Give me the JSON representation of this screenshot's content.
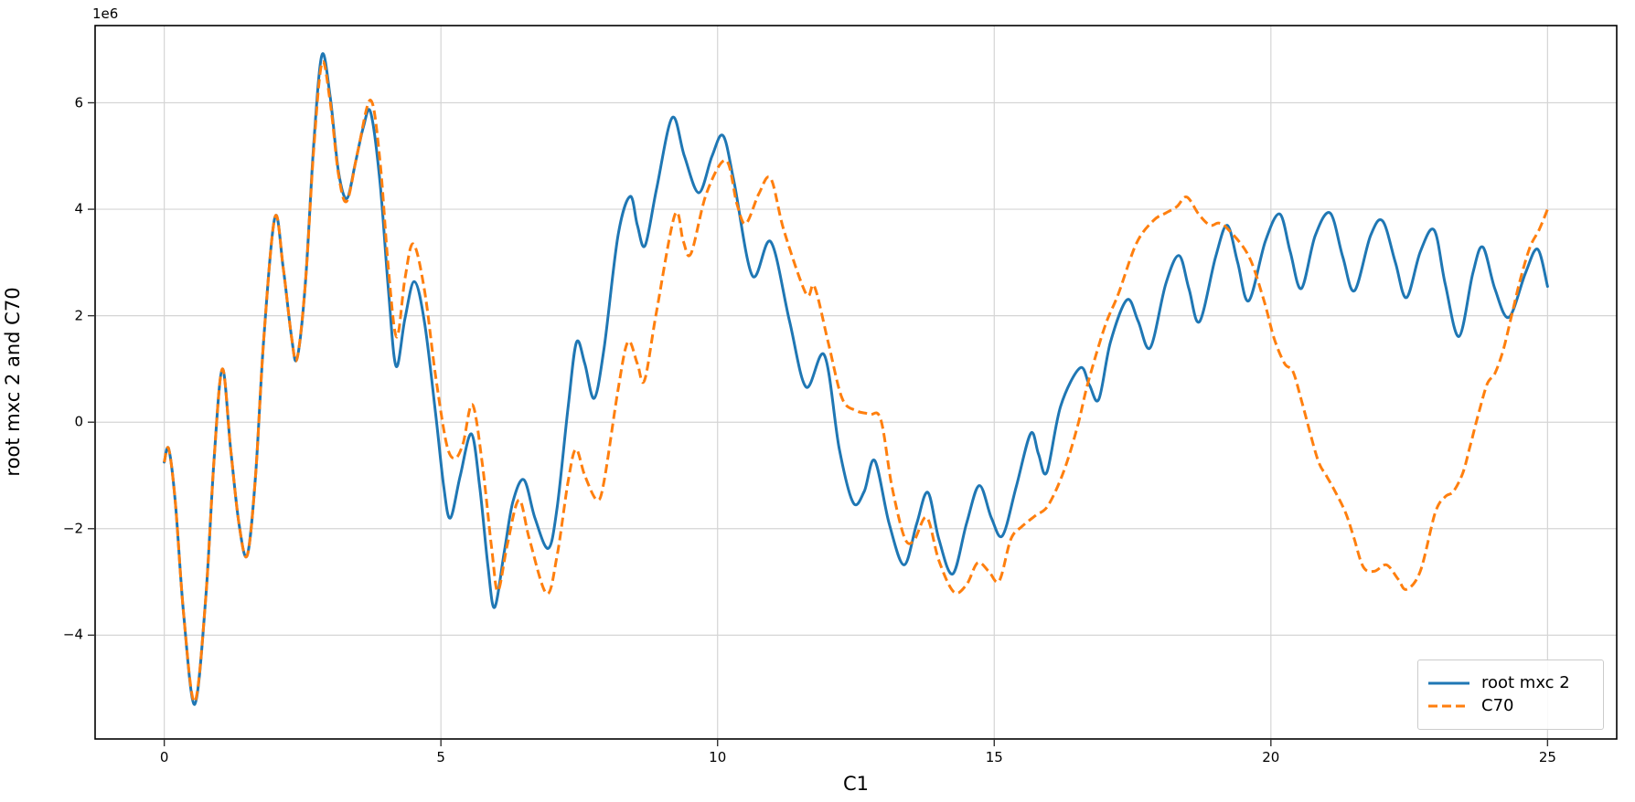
{
  "figure": {
    "background": "#ffffff",
    "spine_color": "#000000",
    "grid_color": "#d5d5d5",
    "tick_color": "#333333"
  },
  "chart_data": {
    "type": "line",
    "title": "",
    "xlabel": "C1",
    "ylabel": "root mxc 2 and C70",
    "offset_text": "1e6",
    "y_unit_multiplier": 1000000,
    "grid": true,
    "xlim": [
      -1.25,
      26.25
    ],
    "ylim": [
      -5.95,
      7.45
    ],
    "x_ticks": [
      0,
      5,
      10,
      15,
      20,
      25
    ],
    "x_tick_labels": [
      "0",
      "5",
      "10",
      "15",
      "20",
      "25"
    ],
    "y_ticks": [
      6,
      4,
      2,
      0,
      -2,
      -4
    ],
    "y_tick_labels": [
      "6",
      "4",
      "2",
      "0",
      "−2",
      "−4"
    ],
    "legend": {
      "location": "lower right",
      "entries": [
        {
          "label": "root mxc 2",
          "style": "solid"
        },
        {
          "label": "C70",
          "style": "dashed"
        }
      ]
    },
    "series": [
      {
        "name": "root mxc 2",
        "color": "#1f77b4",
        "style": "solid",
        "linewidth": 3,
        "points": [
          [
            0,
            -0.75
          ],
          [
            0.08,
            -0.5
          ],
          [
            0.2,
            -1.5
          ],
          [
            0.35,
            -3.6
          ],
          [
            0.55,
            -5.3
          ],
          [
            0.75,
            -3.3
          ],
          [
            0.9,
            -0.7
          ],
          [
            1.05,
            1.0
          ],
          [
            1.2,
            -0.5
          ],
          [
            1.35,
            -1.9
          ],
          [
            1.5,
            -2.5
          ],
          [
            1.65,
            -1.0
          ],
          [
            1.8,
            1.6
          ],
          [
            2.0,
            3.85
          ],
          [
            2.15,
            2.9
          ],
          [
            2.3,
            1.6
          ],
          [
            2.4,
            1.2
          ],
          [
            2.55,
            2.6
          ],
          [
            2.7,
            5.2
          ],
          [
            2.85,
            6.9
          ],
          [
            3.0,
            6.1
          ],
          [
            3.15,
            4.7
          ],
          [
            3.3,
            4.2
          ],
          [
            3.45,
            4.85
          ],
          [
            3.6,
            5.55
          ],
          [
            3.73,
            5.82
          ],
          [
            3.9,
            4.5
          ],
          [
            4.05,
            2.5
          ],
          [
            4.19,
            1.05
          ],
          [
            4.35,
            1.95
          ],
          [
            4.52,
            2.64
          ],
          [
            4.7,
            1.9
          ],
          [
            4.9,
            0.2
          ],
          [
            5.05,
            -1.2
          ],
          [
            5.17,
            -1.8
          ],
          [
            5.35,
            -1.0
          ],
          [
            5.55,
            -0.22
          ],
          [
            5.7,
            -1.2
          ],
          [
            5.85,
            -2.7
          ],
          [
            5.97,
            -3.48
          ],
          [
            6.15,
            -2.4
          ],
          [
            6.3,
            -1.5
          ],
          [
            6.5,
            -1.08
          ],
          [
            6.7,
            -1.8
          ],
          [
            6.94,
            -2.37
          ],
          [
            7.1,
            -1.6
          ],
          [
            7.3,
            0.3
          ],
          [
            7.45,
            1.5
          ],
          [
            7.6,
            1.1
          ],
          [
            7.77,
            0.45
          ],
          [
            7.95,
            1.4
          ],
          [
            8.2,
            3.5
          ],
          [
            8.42,
            4.24
          ],
          [
            8.55,
            3.7
          ],
          [
            8.69,
            3.32
          ],
          [
            8.9,
            4.4
          ],
          [
            9.18,
            5.72
          ],
          [
            9.4,
            5.0
          ],
          [
            9.66,
            4.31
          ],
          [
            9.9,
            5.0
          ],
          [
            10.1,
            5.38
          ],
          [
            10.3,
            4.5
          ],
          [
            10.63,
            2.75
          ],
          [
            10.96,
            3.39
          ],
          [
            11.3,
            1.9
          ],
          [
            11.6,
            0.66
          ],
          [
            11.93,
            1.26
          ],
          [
            12.2,
            -0.5
          ],
          [
            12.45,
            -1.51
          ],
          [
            12.65,
            -1.3
          ],
          [
            12.84,
            -0.72
          ],
          [
            13.1,
            -1.9
          ],
          [
            13.37,
            -2.68
          ],
          [
            13.6,
            -1.9
          ],
          [
            13.8,
            -1.32
          ],
          [
            14.0,
            -2.2
          ],
          [
            14.25,
            -2.85
          ],
          [
            14.5,
            -1.9
          ],
          [
            14.73,
            -1.19
          ],
          [
            14.95,
            -1.8
          ],
          [
            15.15,
            -2.13
          ],
          [
            15.4,
            -1.2
          ],
          [
            15.66,
            -0.21
          ],
          [
            15.8,
            -0.6
          ],
          [
            15.95,
            -0.94
          ],
          [
            16.2,
            0.3
          ],
          [
            16.55,
            1.02
          ],
          [
            16.72,
            0.7
          ],
          [
            16.89,
            0.43
          ],
          [
            17.1,
            1.5
          ],
          [
            17.4,
            2.3
          ],
          [
            17.6,
            1.9
          ],
          [
            17.82,
            1.4
          ],
          [
            18.1,
            2.6
          ],
          [
            18.34,
            3.13
          ],
          [
            18.52,
            2.5
          ],
          [
            18.71,
            1.89
          ],
          [
            19.0,
            3.1
          ],
          [
            19.21,
            3.7
          ],
          [
            19.4,
            3.0
          ],
          [
            19.6,
            2.28
          ],
          [
            19.9,
            3.4
          ],
          [
            20.16,
            3.91
          ],
          [
            20.35,
            3.2
          ],
          [
            20.55,
            2.51
          ],
          [
            20.8,
            3.5
          ],
          [
            21.07,
            3.93
          ],
          [
            21.3,
            3.1
          ],
          [
            21.51,
            2.47
          ],
          [
            21.8,
            3.5
          ],
          [
            22.02,
            3.78
          ],
          [
            22.25,
            3.0
          ],
          [
            22.45,
            2.34
          ],
          [
            22.7,
            3.2
          ],
          [
            22.95,
            3.61
          ],
          [
            23.15,
            2.6
          ],
          [
            23.4,
            1.61
          ],
          [
            23.65,
            2.8
          ],
          [
            23.83,
            3.29
          ],
          [
            24.05,
            2.5
          ],
          [
            24.3,
            1.97
          ],
          [
            24.6,
            2.8
          ],
          [
            24.82,
            3.25
          ],
          [
            25.0,
            2.55
          ]
        ]
      },
      {
        "name": "C70",
        "color": "#ff7f0e",
        "style": "dashed",
        "linewidth": 3,
        "points": [
          [
            0,
            -0.75
          ],
          [
            0.08,
            -0.5
          ],
          [
            0.2,
            -1.5
          ],
          [
            0.35,
            -3.6
          ],
          [
            0.55,
            -5.25
          ],
          [
            0.75,
            -3.3
          ],
          [
            0.9,
            -0.7
          ],
          [
            1.05,
            1.0
          ],
          [
            1.2,
            -0.5
          ],
          [
            1.35,
            -1.9
          ],
          [
            1.5,
            -2.5
          ],
          [
            1.65,
            -1.0
          ],
          [
            1.8,
            1.6
          ],
          [
            2.0,
            3.85
          ],
          [
            2.15,
            2.9
          ],
          [
            2.3,
            1.6
          ],
          [
            2.4,
            1.2
          ],
          [
            2.55,
            2.6
          ],
          [
            2.7,
            5.1
          ],
          [
            2.85,
            6.75
          ],
          [
            3.0,
            6.0
          ],
          [
            3.15,
            4.65
          ],
          [
            3.3,
            4.15
          ],
          [
            3.5,
            5.1
          ],
          [
            3.73,
            6.05
          ],
          [
            3.9,
            4.9
          ],
          [
            4.05,
            2.9
          ],
          [
            4.2,
            1.6
          ],
          [
            4.35,
            2.7
          ],
          [
            4.5,
            3.35
          ],
          [
            4.7,
            2.5
          ],
          [
            4.9,
            0.9
          ],
          [
            5.1,
            -0.4
          ],
          [
            5.25,
            -0.68
          ],
          [
            5.4,
            -0.4
          ],
          [
            5.57,
            0.33
          ],
          [
            5.75,
            -0.8
          ],
          [
            5.92,
            -2.4
          ],
          [
            6.03,
            -3.17
          ],
          [
            6.2,
            -2.3
          ],
          [
            6.41,
            -1.46
          ],
          [
            6.6,
            -2.2
          ],
          [
            6.91,
            -3.22
          ],
          [
            7.1,
            -2.5
          ],
          [
            7.3,
            -1.1
          ],
          [
            7.44,
            -0.51
          ],
          [
            7.6,
            -1.0
          ],
          [
            7.82,
            -1.46
          ],
          [
            7.95,
            -1.1
          ],
          [
            8.2,
            0.6
          ],
          [
            8.38,
            1.51
          ],
          [
            8.55,
            1.1
          ],
          [
            8.68,
            0.79
          ],
          [
            8.9,
            2.1
          ],
          [
            9.23,
            3.9
          ],
          [
            9.38,
            3.4
          ],
          [
            9.52,
            3.17
          ],
          [
            9.8,
            4.3
          ],
          [
            10.15,
            4.92
          ],
          [
            10.35,
            4.1
          ],
          [
            10.51,
            3.73
          ],
          [
            10.75,
            4.3
          ],
          [
            10.96,
            4.58
          ],
          [
            11.2,
            3.6
          ],
          [
            11.6,
            2.41
          ],
          [
            11.75,
            2.55
          ],
          [
            12.0,
            1.5
          ],
          [
            12.25,
            0.45
          ],
          [
            12.5,
            0.22
          ],
          [
            12.75,
            0.15
          ],
          [
            12.95,
            0.05
          ],
          [
            13.15,
            -1.2
          ],
          [
            13.38,
            -2.17
          ],
          [
            13.55,
            -2.22
          ],
          [
            13.78,
            -1.79
          ],
          [
            14.0,
            -2.6
          ],
          [
            14.27,
            -3.19
          ],
          [
            14.5,
            -3.05
          ],
          [
            14.7,
            -2.64
          ],
          [
            14.9,
            -2.8
          ],
          [
            15.09,
            -2.98
          ],
          [
            15.3,
            -2.2
          ],
          [
            15.5,
            -1.96
          ],
          [
            15.75,
            -1.75
          ],
          [
            15.97,
            -1.57
          ],
          [
            16.25,
            -0.94
          ],
          [
            16.5,
            -0.1
          ],
          [
            16.69,
            0.72
          ],
          [
            17.0,
            1.8
          ],
          [
            17.24,
            2.4
          ],
          [
            17.57,
            3.36
          ],
          [
            17.88,
            3.79
          ],
          [
            18.1,
            3.93
          ],
          [
            18.3,
            4.05
          ],
          [
            18.48,
            4.23
          ],
          [
            18.7,
            3.9
          ],
          [
            18.9,
            3.7
          ],
          [
            19.06,
            3.74
          ],
          [
            19.23,
            3.62
          ],
          [
            19.6,
            3.12
          ],
          [
            19.87,
            2.3
          ],
          [
            20.06,
            1.57
          ],
          [
            20.25,
            1.1
          ],
          [
            20.4,
            0.95
          ],
          [
            20.56,
            0.38
          ],
          [
            20.84,
            -0.68
          ],
          [
            21.0,
            -1.0
          ],
          [
            21.15,
            -1.28
          ],
          [
            21.35,
            -1.7
          ],
          [
            21.5,
            -2.17
          ],
          [
            21.67,
            -2.72
          ],
          [
            21.87,
            -2.8
          ],
          [
            22.09,
            -2.68
          ],
          [
            22.3,
            -2.95
          ],
          [
            22.45,
            -3.14
          ],
          [
            22.7,
            -2.8
          ],
          [
            22.97,
            -1.7
          ],
          [
            23.15,
            -1.4
          ],
          [
            23.3,
            -1.3
          ],
          [
            23.47,
            -0.95
          ],
          [
            23.6,
            -0.45
          ],
          [
            23.75,
            0.15
          ],
          [
            23.91,
            0.72
          ],
          [
            24.05,
            0.92
          ],
          [
            24.2,
            1.36
          ],
          [
            24.35,
            2.0
          ],
          [
            24.5,
            2.65
          ],
          [
            24.68,
            3.28
          ],
          [
            24.85,
            3.62
          ],
          [
            25.0,
            4.0
          ]
        ]
      }
    ]
  }
}
